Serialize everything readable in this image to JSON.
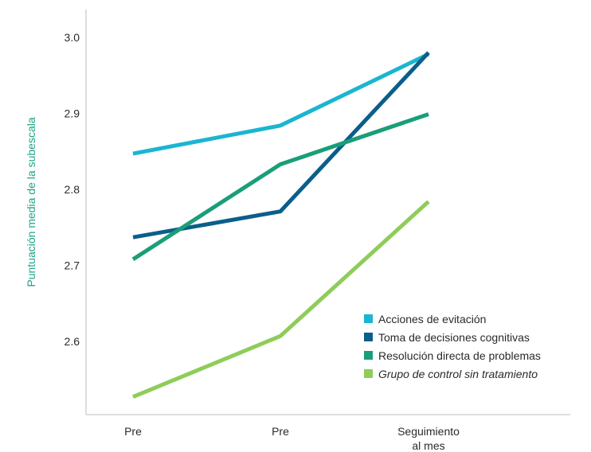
{
  "chart_data": {
    "type": "line",
    "categories": [
      "Pre",
      "Pre",
      "Seguimiento al mes"
    ],
    "category_lines": [
      [
        "Pre"
      ],
      [
        "Pre"
      ],
      [
        "Seguimiento",
        "al mes"
      ]
    ],
    "ylabel": "Puntuación media de la subescala",
    "xlabel": "",
    "ylim": [
      2.5,
      3.04
    ],
    "yticks": [
      2.6,
      2.7,
      2.8,
      2.9,
      3.0
    ],
    "ytick_labels": [
      "2.6",
      "2.7",
      "2.8",
      "2.9",
      "3.0"
    ],
    "grid": false,
    "legend_position": "bottom-right",
    "series": [
      {
        "name": "Acciones de evitación",
        "color": "#1ab5d1",
        "values": [
          2.847,
          2.884,
          2.978
        ],
        "italic": false
      },
      {
        "name": "Toma de decisiones cognitivas",
        "color": "#0b5e8a",
        "values": [
          2.737,
          2.771,
          2.98
        ],
        "italic": false
      },
      {
        "name": "Resolución directa de problemas",
        "color": "#1a9e79",
        "values": [
          2.708,
          2.833,
          2.899
        ],
        "italic": false
      },
      {
        "name": "Grupo de control sin tratamiento",
        "color": "#8fcc5a",
        "values": [
          2.527,
          2.607,
          2.784
        ],
        "italic": true
      }
    ]
  }
}
